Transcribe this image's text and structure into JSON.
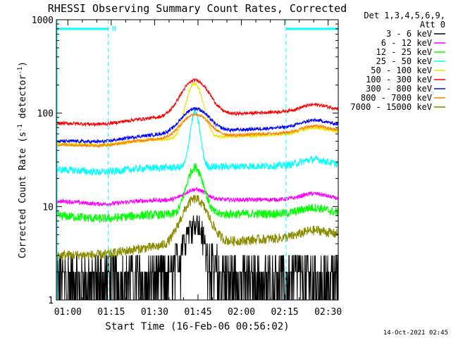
{
  "chart_data": {
    "type": "line",
    "title": "RHESSI Observing Summary Count Rates, Corrected",
    "xlabel": "Start Time (16-Feb-06 00:56:02)",
    "ylabel": "Corrected Count Rate (s⁻¹ detector⁻¹)",
    "ylabel_parts": [
      "Corrected Count Rate (s",
      "-1",
      " detector",
      "-1",
      ")"
    ],
    "yscale": "log",
    "ylim": [
      1,
      1000
    ],
    "xlim_minutes": [
      56.03,
      153.5
    ],
    "x_ticks": [
      {
        "label": "01:00",
        "minute": 60
      },
      {
        "label": "01:15",
        "minute": 75
      },
      {
        "label": "01:30",
        "minute": 90
      },
      {
        "label": "01:45",
        "minute": 105
      },
      {
        "label": "02:00",
        "minute": 120
      },
      {
        "label": "02:15",
        "minute": 135
      },
      {
        "label": "02:30",
        "minute": 150
      }
    ],
    "y_ticks": [
      {
        "label": "1",
        "value": 1
      },
      {
        "label": "10",
        "value": 10
      },
      {
        "label": "100",
        "value": 100
      },
      {
        "label": "1000",
        "value": 1000
      }
    ],
    "legend_header": [
      "Det 1,3,4,5,6,9,",
      "Att 0"
    ],
    "legend_position": "right",
    "series": [
      {
        "name": "3 - 6 keV",
        "color": "#000000",
        "baseline": 2.0,
        "endval": 2.0,
        "peak": 7,
        "peak_min": 103.5,
        "width": 4.5,
        "noise": 0.75,
        "digitize": true
      },
      {
        "name": "6 - 12 keV",
        "color": "#ff00ff",
        "baseline": 11.5,
        "endval": 12.0,
        "peak": 15,
        "peak_min": 104,
        "width": 5,
        "noise": 0.05
      },
      {
        "name": "12 - 25 keV",
        "color": "#00ff00",
        "baseline": 8.0,
        "endval": 8.5,
        "peak": 26,
        "peak_min": 104,
        "width": 3.5,
        "noise": 0.11
      },
      {
        "name": "25 - 50 keV",
        "color": "#00ffff",
        "baseline": 25.0,
        "endval": 28.0,
        "peak": 100,
        "peak_min": 104,
        "width": 2.0,
        "noise": 0.09
      },
      {
        "name": "50 - 100 keV",
        "color": "#e8e800",
        "baseline": 47.0,
        "endval": 62.0,
        "peak": 200,
        "peak_min": 103.8,
        "width": 3.5,
        "noise": 0.04
      },
      {
        "name": "100 - 300 keV",
        "color": "#ff0000",
        "baseline": 78.0,
        "endval": 110.0,
        "peak": 210,
        "peak_min": 104,
        "width": 6,
        "noise": 0.04
      },
      {
        "name": "300 - 800 keV",
        "color": "#0000ff",
        "baseline": 50.0,
        "endval": 75.0,
        "peak": 100,
        "peak_min": 104,
        "width": 6,
        "noise": 0.04
      },
      {
        "name": "800 - 7000 keV",
        "color": "#ff8000",
        "baseline": 46.0,
        "endval": 65.0,
        "peak": 88,
        "peak_min": 104,
        "width": 6,
        "noise": 0.035
      },
      {
        "name": "7000 - 15000 keV",
        "color": "#8b8b00",
        "baseline": 3.0,
        "endval": 5.0,
        "peak": 11,
        "peak_min": 104,
        "width": 5.5,
        "noise": 0.12
      }
    ],
    "night_intervals": [
      [
        56.03,
        74.0
      ],
      [
        135.2,
        153.5
      ]
    ],
    "saa_markers": [
      "N"
    ],
    "footer_timestamp": "14-Oct-2021 02:45"
  }
}
